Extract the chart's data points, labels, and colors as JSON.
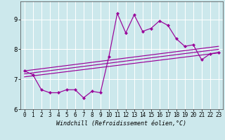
{
  "title": "",
  "xlabel": "Windchill (Refroidissement éolien,°C)",
  "ylabel": "",
  "bg_color": "#cce8ec",
  "plot_bg_color": "#cce8ec",
  "line_color": "#990099",
  "xlim": [
    -0.5,
    23.5
  ],
  "ylim": [
    6.0,
    9.6
  ],
  "yticks": [
    6,
    7,
    8,
    9
  ],
  "xticks": [
    0,
    1,
    2,
    3,
    4,
    5,
    6,
    7,
    8,
    9,
    10,
    11,
    12,
    13,
    14,
    15,
    16,
    17,
    18,
    19,
    20,
    21,
    22,
    23
  ],
  "scatter_x": [
    0,
    1,
    2,
    3,
    4,
    5,
    6,
    7,
    8,
    9,
    10,
    11,
    12,
    13,
    14,
    15,
    16,
    17,
    18,
    19,
    20,
    21,
    22,
    23
  ],
  "scatter_y": [
    7.28,
    7.15,
    6.65,
    6.55,
    6.55,
    6.65,
    6.65,
    6.38,
    6.6,
    6.55,
    7.75,
    9.2,
    8.55,
    9.15,
    8.6,
    8.7,
    8.95,
    8.8,
    8.35,
    8.1,
    8.15,
    7.65,
    7.85,
    7.9
  ],
  "reg_lines": [
    {
      "x": [
        0,
        23
      ],
      "y": [
        7.28,
        8.1
      ]
    },
    {
      "x": [
        0,
        23
      ],
      "y": [
        7.18,
        8.0
      ]
    },
    {
      "x": [
        0,
        23
      ],
      "y": [
        7.08,
        7.88
      ]
    }
  ],
  "xlabel_fontsize": 6.0,
  "tick_fontsize": 5.5,
  "ytick_fontsize": 6.5
}
